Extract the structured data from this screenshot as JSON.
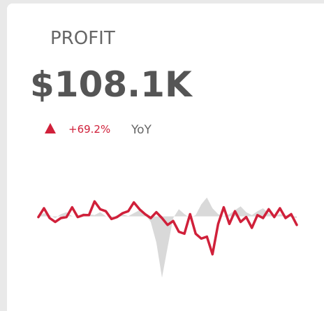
{
  "chart_data": {
    "type": "line",
    "title": "PROFIT",
    "kpi": "$108.1K",
    "change": "+69.2%",
    "change_label": "YoY",
    "ylim": [
      0,
      100
    ],
    "series": [
      {
        "color": "#d9d9d9",
        "kind": "area",
        "values": [
          72,
          75,
          73,
          70,
          74,
          76,
          72,
          71,
          75,
          74,
          73,
          76,
          72,
          70,
          73,
          74,
          72,
          75,
          78,
          74,
          66,
          45,
          9,
          40,
          70,
          79,
          74,
          70,
          73,
          84,
          91,
          80,
          74,
          72,
          74,
          78,
          82,
          76,
          73,
          77,
          80,
          75,
          72,
          74,
          73,
          71,
          70
        ]
      },
      {
        "color": "#d0203a",
        "kind": "line",
        "values": [
          71,
          80,
          70,
          66,
          70,
          71,
          81,
          71,
          73,
          73,
          87,
          79,
          77,
          69,
          71,
          75,
          77,
          86,
          79,
          74,
          70,
          76,
          70,
          63,
          67,
          56,
          54,
          74,
          54,
          49,
          51,
          33,
          64,
          81,
          64,
          77,
          66,
          71,
          60,
          73,
          70,
          79,
          71,
          80,
          70,
          74,
          63
        ]
      }
    ]
  }
}
